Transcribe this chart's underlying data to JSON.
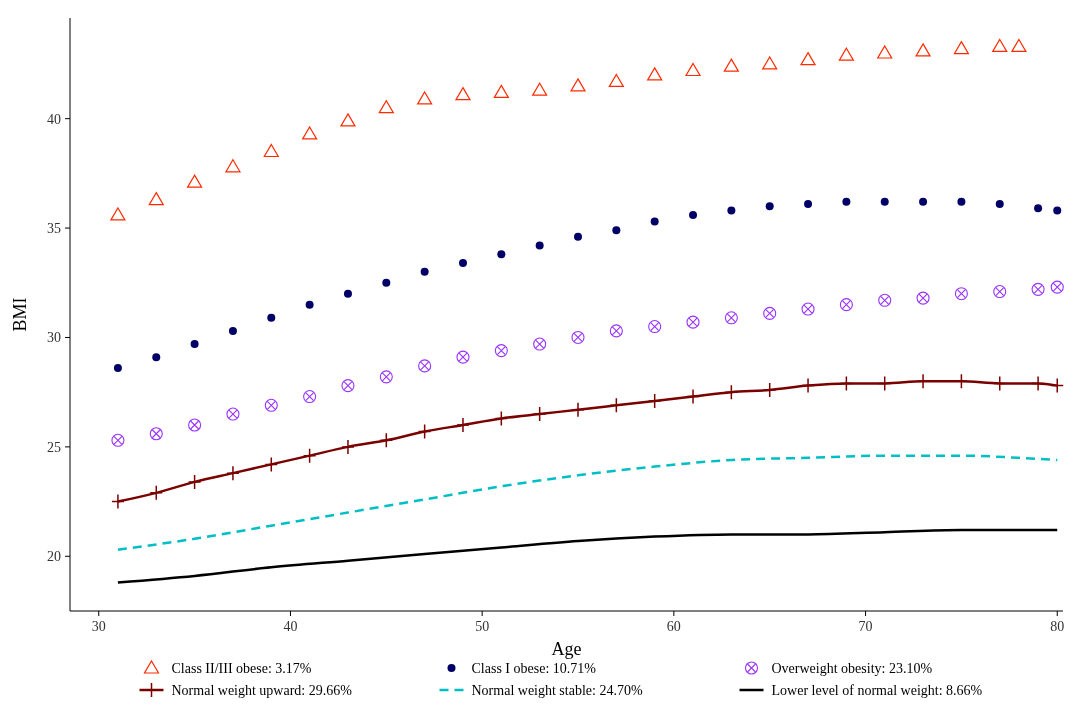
{
  "chart_data": {
    "type": "line",
    "xlabel": "Age",
    "ylabel": "BMI",
    "xlim": [
      28.5,
      80.3
    ],
    "ylim": [
      17.5,
      44.6
    ],
    "xticks": [
      30,
      40,
      50,
      60,
      70,
      80
    ],
    "yticks": [
      20,
      25,
      30,
      35,
      40
    ],
    "grid": false,
    "legend": "bottom",
    "series": [
      {
        "name": "Class II/III obese: 3.17%",
        "type": "scatter",
        "marker": "triangle",
        "color": "#ff2a00",
        "x": [
          31,
          33,
          35,
          37,
          39,
          41,
          43,
          45,
          47,
          49,
          51,
          53,
          55,
          57,
          59,
          61,
          63,
          65,
          67,
          69,
          71,
          73,
          75,
          77,
          78
        ],
        "values": [
          35.6,
          36.3,
          37.1,
          37.8,
          38.5,
          39.3,
          39.9,
          40.5,
          40.9,
          41.1,
          41.2,
          41.3,
          41.5,
          41.7,
          42.0,
          42.2,
          42.4,
          42.5,
          42.7,
          42.9,
          43.0,
          43.1,
          43.2,
          43.3,
          43.3
        ]
      },
      {
        "name": "Class I obese: 10.71%",
        "type": "scatter",
        "marker": "circle",
        "color": "#000066",
        "x": [
          31,
          33,
          35,
          37,
          39,
          41,
          43,
          45,
          47,
          49,
          51,
          53,
          55,
          57,
          59,
          61,
          63,
          65,
          67,
          69,
          71,
          73,
          75,
          77,
          79,
          80
        ],
        "values": [
          28.6,
          29.1,
          29.7,
          30.3,
          30.9,
          31.5,
          32.0,
          32.5,
          33.0,
          33.4,
          33.8,
          34.2,
          34.6,
          34.9,
          35.3,
          35.6,
          35.8,
          36.0,
          36.1,
          36.2,
          36.2,
          36.2,
          36.2,
          36.1,
          35.9,
          35.8
        ]
      },
      {
        "name": "Overweight obesity: 23.10%",
        "type": "scatter",
        "marker": "cross",
        "color": "#9933ff",
        "x": [
          31,
          33,
          35,
          37,
          39,
          41,
          43,
          45,
          47,
          49,
          51,
          53,
          55,
          57,
          59,
          61,
          63,
          65,
          67,
          69,
          71,
          73,
          75,
          77,
          79,
          80
        ],
        "values": [
          25.3,
          25.6,
          26.0,
          26.5,
          26.9,
          27.3,
          27.8,
          28.2,
          28.7,
          29.1,
          29.4,
          29.7,
          30.0,
          30.3,
          30.5,
          30.7,
          30.9,
          31.1,
          31.3,
          31.5,
          31.7,
          31.8,
          32.0,
          32.1,
          32.2,
          32.3
        ]
      },
      {
        "name": "Normal weight upward: 29.66%",
        "marker": "cross",
        "line_style": "solid",
        "color": "#7a0000",
        "x": [
          31,
          33,
          35,
          37,
          39,
          41,
          43,
          45,
          47,
          49,
          51,
          53,
          55,
          57,
          59,
          61,
          63,
          65,
          67,
          69,
          71,
          73,
          75,
          77,
          79,
          80
        ],
        "values": [
          22.5,
          22.9,
          23.4,
          23.8,
          24.2,
          24.6,
          25.0,
          25.3,
          25.7,
          26.0,
          26.3,
          26.5,
          26.7,
          26.9,
          27.1,
          27.3,
          27.5,
          27.6,
          27.8,
          27.9,
          27.9,
          28.0,
          28.0,
          27.9,
          27.9,
          27.8
        ]
      },
      {
        "name": "Normal weight stable: 24.70%",
        "marker": "none",
        "line_style": "dashed",
        "color": "#00bfc4",
        "x": [
          31,
          35,
          39,
          43,
          47,
          51,
          55,
          59,
          63,
          67,
          71,
          75,
          78,
          80
        ],
        "values": [
          20.3,
          20.8,
          21.4,
          22.0,
          22.6,
          23.2,
          23.7,
          24.1,
          24.4,
          24.5,
          24.6,
          24.6,
          24.5,
          24.4
        ]
      },
      {
        "name": "Lower level of normal weight: 8.66%",
        "marker": "none",
        "line_style": "solid",
        "color": "#000000",
        "x": [
          31,
          35,
          39,
          43,
          47,
          51,
          55,
          59,
          63,
          67,
          71,
          75,
          80
        ],
        "values": [
          18.8,
          19.1,
          19.5,
          19.8,
          20.1,
          20.4,
          20.7,
          20.9,
          21.0,
          21.0,
          21.1,
          21.2,
          21.2
        ]
      }
    ]
  }
}
